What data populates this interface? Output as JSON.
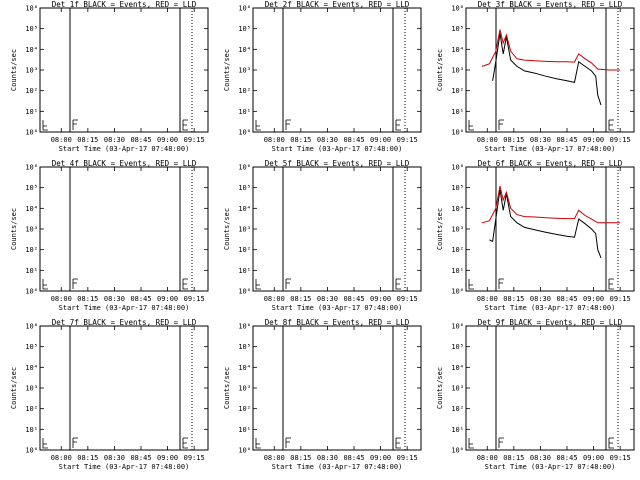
{
  "figure": {
    "xlabel": "Start Time (03-Apr-17 07:48:00)",
    "ylabel": "Counts/sec"
  },
  "chart_data": [
    {
      "type": "line",
      "title": "Det 1f BLACK = Events, RED = LLD",
      "xlabel": "Start Time (03-Apr-17 07:48:00)",
      "ylabel": "Counts/sec",
      "yscale": "log",
      "ylim": [
        1,
        1000000
      ],
      "y_tick_labels": [
        "10⁰",
        "10¹",
        "10²",
        "10³",
        "10⁴",
        "10⁵",
        "10⁶"
      ],
      "x_tick_labels": [
        "08:00",
        "08:15",
        "08:30",
        "08:45",
        "09:00",
        "09:15"
      ],
      "series": []
    },
    {
      "type": "line",
      "title": "Det 2f BLACK = Events, RED = LLD",
      "xlabel": "Start Time (03-Apr-17 07:48:00)",
      "ylabel": "Counts/sec",
      "yscale": "log",
      "ylim": [
        1,
        1000000
      ],
      "y_tick_labels": [
        "10⁰",
        "10¹",
        "10²",
        "10³",
        "10⁴",
        "10⁵",
        "10⁶"
      ],
      "x_tick_labels": [
        "08:00",
        "08:15",
        "08:30",
        "08:45",
        "09:00",
        "09:15"
      ],
      "series": []
    },
    {
      "type": "line",
      "title": "Det 3f BLACK = Events, RED = LLD",
      "xlabel": "Start Time (03-Apr-17 07:48:00)",
      "ylabel": "Counts/sec",
      "yscale": "log",
      "ylim": [
        1,
        1000000
      ],
      "y_tick_labels": [
        "10⁰",
        "10¹",
        "10²",
        "10³",
        "10⁴",
        "10⁵",
        "10⁶"
      ],
      "x_tick_labels": [
        "08:00",
        "08:15",
        "08:30",
        "08:45",
        "09:00",
        "09:15"
      ],
      "series": [
        {
          "color": "#000000",
          "points": [
            [
              8.05,
              300
            ],
            [
              8.08,
              2500
            ],
            [
              8.12,
              60000
            ],
            [
              8.15,
              6000
            ],
            [
              8.18,
              40000
            ],
            [
              8.22,
              3000
            ],
            [
              8.28,
              1500
            ],
            [
              8.35,
              900
            ],
            [
              8.45,
              700
            ],
            [
              8.55,
              500
            ],
            [
              8.65,
              380
            ],
            [
              8.75,
              300
            ],
            [
              8.82,
              250
            ],
            [
              8.86,
              2500
            ],
            [
              8.92,
              1500
            ],
            [
              8.98,
              900
            ],
            [
              9.02,
              500
            ],
            [
              9.04,
              60
            ],
            [
              9.07,
              20
            ]
          ]
        },
        {
          "color": "#cc0000",
          "points": [
            [
              7.95,
              1500
            ],
            [
              8.02,
              2000
            ],
            [
              8.08,
              8000
            ],
            [
              8.12,
              90000
            ],
            [
              8.15,
              20000
            ],
            [
              8.18,
              50000
            ],
            [
              8.22,
              8000
            ],
            [
              8.28,
              3500
            ],
            [
              8.35,
              3000
            ],
            [
              8.45,
              2800
            ],
            [
              8.55,
              2600
            ],
            [
              8.65,
              2500
            ],
            [
              8.75,
              2500
            ],
            [
              8.82,
              2400
            ],
            [
              8.86,
              6000
            ],
            [
              8.92,
              3500
            ],
            [
              8.98,
              2200
            ],
            [
              9.04,
              1100
            ],
            [
              9.15,
              1000
            ],
            [
              9.25,
              1000
            ]
          ]
        }
      ]
    },
    {
      "type": "line",
      "title": "Det 4f BLACK = Events, RED = LLD",
      "xlabel": "Start Time (03-Apr-17 07:48:00)",
      "ylabel": "Counts/sec",
      "yscale": "log",
      "ylim": [
        1,
        1000000
      ],
      "y_tick_labels": [
        "10⁰",
        "10¹",
        "10²",
        "10³",
        "10⁴",
        "10⁵",
        "10⁶"
      ],
      "x_tick_labels": [
        "08:00",
        "08:15",
        "08:30",
        "08:45",
        "09:00",
        "09:15"
      ],
      "series": []
    },
    {
      "type": "line",
      "title": "Det 5f BLACK = Events, RED = LLD",
      "xlabel": "Start Time (03-Apr-17 07:48:00)",
      "ylabel": "Counts/sec",
      "yscale": "log",
      "ylim": [
        1,
        1000000
      ],
      "y_tick_labels": [
        "10⁰",
        "10¹",
        "10²",
        "10³",
        "10⁴",
        "10⁵",
        "10⁶"
      ],
      "x_tick_labels": [
        "08:00",
        "08:15",
        "08:30",
        "08:45",
        "09:00",
        "09:15"
      ],
      "series": []
    },
    {
      "type": "line",
      "title": "Det 6f BLACK = Events, RED = LLD",
      "xlabel": "Start Time (03-Apr-17 07:48:00)",
      "ylabel": "Counts/sec",
      "yscale": "log",
      "ylim": [
        1,
        1000000
      ],
      "y_tick_labels": [
        "10⁰",
        "10¹",
        "10²",
        "10³",
        "10⁴",
        "10⁵",
        "10⁶"
      ],
      "x_tick_labels": [
        "08:00",
        "08:15",
        "08:30",
        "08:45",
        "09:00",
        "09:15"
      ],
      "series": [
        {
          "color": "#000000",
          "points": [
            [
              8.02,
              300
            ],
            [
              8.05,
              250
            ],
            [
              8.08,
              3000
            ],
            [
              8.12,
              80000
            ],
            [
              8.15,
              8000
            ],
            [
              8.18,
              50000
            ],
            [
              8.22,
              4000
            ],
            [
              8.28,
              2000
            ],
            [
              8.35,
              1200
            ],
            [
              8.45,
              900
            ],
            [
              8.55,
              700
            ],
            [
              8.65,
              550
            ],
            [
              8.75,
              450
            ],
            [
              8.82,
              400
            ],
            [
              8.86,
              3000
            ],
            [
              8.92,
              1800
            ],
            [
              8.98,
              1000
            ],
            [
              9.02,
              600
            ],
            [
              9.04,
              100
            ],
            [
              9.07,
              40
            ]
          ]
        },
        {
          "color": "#cc0000",
          "points": [
            [
              7.95,
              2000
            ],
            [
              8.02,
              2500
            ],
            [
              8.08,
              10000
            ],
            [
              8.12,
              120000
            ],
            [
              8.15,
              25000
            ],
            [
              8.18,
              60000
            ],
            [
              8.22,
              10000
            ],
            [
              8.28,
              5000
            ],
            [
              8.35,
              4000
            ],
            [
              8.45,
              3800
            ],
            [
              8.55,
              3500
            ],
            [
              8.65,
              3300
            ],
            [
              8.75,
              3200
            ],
            [
              8.82,
              3200
            ],
            [
              8.86,
              8000
            ],
            [
              8.92,
              4500
            ],
            [
              8.98,
              3000
            ],
            [
              9.04,
              2000
            ],
            [
              9.15,
              2000
            ],
            [
              9.25,
              2000
            ]
          ]
        }
      ]
    },
    {
      "type": "line",
      "title": "Det 7f BLACK = Events, RED = LLD",
      "xlabel": "Start Time (03-Apr-17 07:48:00)",
      "ylabel": "Counts/sec",
      "yscale": "log",
      "ylim": [
        1,
        1000000
      ],
      "y_tick_labels": [
        "10⁰",
        "10¹",
        "10²",
        "10³",
        "10⁴",
        "10⁵",
        "10⁶"
      ],
      "x_tick_labels": [
        "08:00",
        "08:15",
        "08:30",
        "08:45",
        "09:00",
        "09:15"
      ],
      "series": []
    },
    {
      "type": "line",
      "title": "Det 8f BLACK = Events, RED = LLD",
      "xlabel": "Start Time (03-Apr-17 07:48:00)",
      "ylabel": "Counts/sec",
      "yscale": "log",
      "ylim": [
        1,
        1000000
      ],
      "y_tick_labels": [
        "10⁰",
        "10¹",
        "10²",
        "10³",
        "10⁴",
        "10⁵",
        "10⁶"
      ],
      "x_tick_labels": [
        "08:00",
        "08:15",
        "08:30",
        "08:45",
        "09:00",
        "09:15"
      ],
      "series": []
    },
    {
      "type": "line",
      "title": "Det 9f BLACK = Events, RED = LLD",
      "xlabel": "Start Time (03-Apr-17 07:48:00)",
      "ylabel": "Counts/sec",
      "yscale": "log",
      "ylim": [
        1,
        1000000
      ],
      "y_tick_labels": [
        "10⁰",
        "10¹",
        "10²",
        "10³",
        "10⁴",
        "10⁵",
        "10⁶"
      ],
      "x_tick_labels": [
        "08:00",
        "08:15",
        "08:30",
        "08:45",
        "09:00",
        "09:15"
      ],
      "series": []
    }
  ]
}
